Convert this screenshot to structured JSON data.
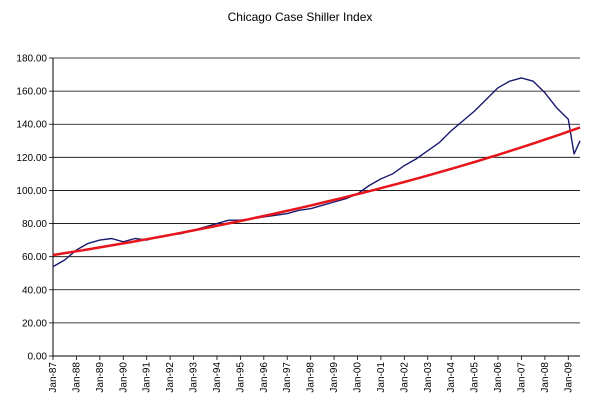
{
  "chart_data": {
    "type": "line",
    "title": "Chicago Case Shiller Index",
    "xlabel": "",
    "ylabel": "",
    "ylim": [
      0,
      180
    ],
    "yticks": [
      "0.00",
      "20.00",
      "40.00",
      "60.00",
      "80.00",
      "100.00",
      "120.00",
      "140.00",
      "160.00",
      "180.00"
    ],
    "x_tick_labels": [
      "Jan-87",
      "Jan-88",
      "Jan-89",
      "Jan-90",
      "Jan-91",
      "Jan-92",
      "Jan-93",
      "Jan-94",
      "Jan-95",
      "Jan-96",
      "Jan-97",
      "Jan-98",
      "Jan-99",
      "Jan-00",
      "Jan-01",
      "Jan-02",
      "Jan-03",
      "Jan-04",
      "Jan-05",
      "Jan-06",
      "Jan-07",
      "Jan-08",
      "Jan-09"
    ],
    "grid": "horizontal",
    "legend": "none",
    "series": [
      {
        "color": "#1a1a6e",
        "x": [
          "Jan-87",
          "Jul-87",
          "Jan-88",
          "Jul-88",
          "Jan-89",
          "Jul-89",
          "Jan-90",
          "Jul-90",
          "Jan-91",
          "Jul-91",
          "Jan-92",
          "Jul-92",
          "Jan-93",
          "Jul-93",
          "Jan-94",
          "Jul-94",
          "Jan-95",
          "Jul-95",
          "Jan-96",
          "Jul-96",
          "Jan-97",
          "Jul-97",
          "Jan-98",
          "Jul-98",
          "Jan-99",
          "Jul-99",
          "Jan-00",
          "Jul-00",
          "Jan-01",
          "Jul-01",
          "Jan-02",
          "Jul-02",
          "Jan-03",
          "Jul-03",
          "Jan-04",
          "Jul-04",
          "Jan-05",
          "Jul-05",
          "Jan-06",
          "Jul-06",
          "Jan-07",
          "Jul-07",
          "Jan-08",
          "Jul-08",
          "Jan-09",
          "Apr-09",
          "Jul-09"
        ],
        "values": [
          54,
          58,
          64,
          68,
          70,
          71,
          69,
          71,
          70,
          72,
          73,
          74,
          76,
          78,
          80,
          82,
          82,
          83,
          84,
          85,
          86,
          88,
          89,
          91,
          93,
          95,
          98,
          103,
          107,
          110,
          115,
          119,
          124,
          129,
          136,
          142,
          148,
          155,
          162,
          166,
          168,
          166,
          159,
          150,
          143,
          122,
          130
        ]
      },
      {
        "color": "#e8141b",
        "x": [
          "Jan-87",
          "Jul-09"
        ],
        "values": [
          61,
          138
        ],
        "trend": "exponential"
      }
    ]
  }
}
